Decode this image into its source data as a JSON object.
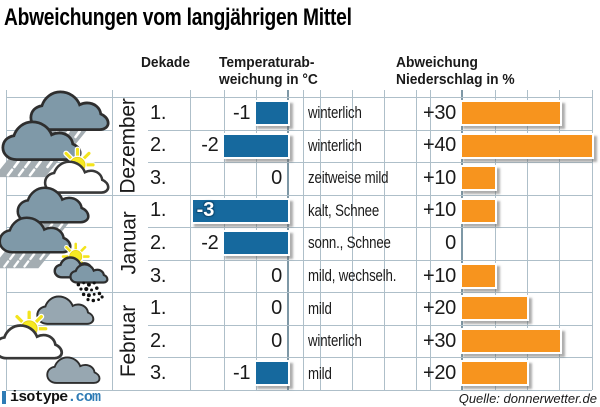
{
  "title": "Abweichungen vom langjährigen Mittel",
  "header": {
    "dekade": "Dekade",
    "temp_line1": "Temperaturab-",
    "temp_line2": "weichung in °C",
    "precip_line1": "Abweichung",
    "precip_line2": "Niederschlag in %"
  },
  "table": {
    "months": [
      {
        "name": "Dezember",
        "rows": [
          {
            "dekade": "1.",
            "icon": "rain-cloud",
            "temp": -1,
            "temp_label": "-1",
            "desc": "winterlich",
            "precip": 30,
            "precip_label": "+30"
          },
          {
            "dekade": "2.",
            "icon": "rain-cloud",
            "temp": -2,
            "temp_label": "-2",
            "desc": "winterlich",
            "precip": 40,
            "precip_label": "+40"
          },
          {
            "dekade": "3.",
            "icon": "sun-cloud",
            "temp": 0,
            "temp_label": "0",
            "desc": "zeitweise mild",
            "precip": 10,
            "precip_label": "+10"
          }
        ]
      },
      {
        "name": "Januar",
        "rows": [
          {
            "dekade": "1.",
            "icon": "rain-cloud",
            "temp": -3,
            "temp_label": "-3",
            "desc": "kalt, Schnee",
            "precip": 10,
            "precip_label": "+10"
          },
          {
            "dekade": "2.",
            "icon": "rain-cloud",
            "temp": -2,
            "temp_label": "-2",
            "desc": "sonn., Schnee",
            "precip": 0,
            "precip_label": "0"
          },
          {
            "dekade": "3.",
            "icon": "sun-cloud-snow",
            "temp": 0,
            "temp_label": "0",
            "desc": "mild, wechselh.",
            "precip": 10,
            "precip_label": "+10"
          }
        ]
      },
      {
        "name": "Februar",
        "rows": [
          {
            "dekade": "1.",
            "icon": "cloud",
            "temp": 0,
            "temp_label": "0",
            "desc": "mild",
            "precip": 20,
            "precip_label": "+20"
          },
          {
            "dekade": "2.",
            "icon": "sun-cloud",
            "temp": 0,
            "temp_label": "0",
            "desc": "winterlich",
            "precip": 30,
            "precip_label": "+30"
          },
          {
            "dekade": "3.",
            "icon": "cloud",
            "temp": -1,
            "temp_label": "-1",
            "desc": "mild",
            "precip": 20,
            "precip_label": "+20"
          }
        ]
      }
    ]
  },
  "footer": {
    "logo_text": "isotype",
    "logo_suffix": ".com",
    "source": "Quelle: donnerwetter.de"
  },
  "colors": {
    "temp_bar": "#16699e",
    "precip_bar": "#f7941e",
    "grid": "#aebfc9",
    "axis": "#7e98a6"
  },
  "chart_data": {
    "type": "bar",
    "orientation": "horizontal",
    "title": "Abweichungen vom langjährigen Mittel",
    "categories": [
      "Dezember 1.",
      "Dezember 2.",
      "Dezember 3.",
      "Januar 1.",
      "Januar 2.",
      "Januar 3.",
      "Februar 1.",
      "Februar 2.",
      "Februar 3."
    ],
    "series": [
      {
        "name": "Temperaturabweichung in °C",
        "values": [
          -1,
          -2,
          0,
          -3,
          -2,
          0,
          0,
          0,
          -1
        ],
        "color": "#16699e",
        "xlim": [
          -3,
          0
        ]
      },
      {
        "name": "Abweichung Niederschlag in %",
        "values": [
          30,
          40,
          10,
          10,
          0,
          10,
          20,
          30,
          20
        ],
        "color": "#f7941e",
        "xlim": [
          0,
          40
        ]
      }
    ],
    "annotations": [
      "winterlich",
      "winterlich",
      "zeitweise mild",
      "kalt, Schnee",
      "sonn., Schnee",
      "mild, wechselh.",
      "mild",
      "winterlich",
      "mild"
    ],
    "grid": true,
    "source": "Quelle: donnerwetter.de"
  }
}
